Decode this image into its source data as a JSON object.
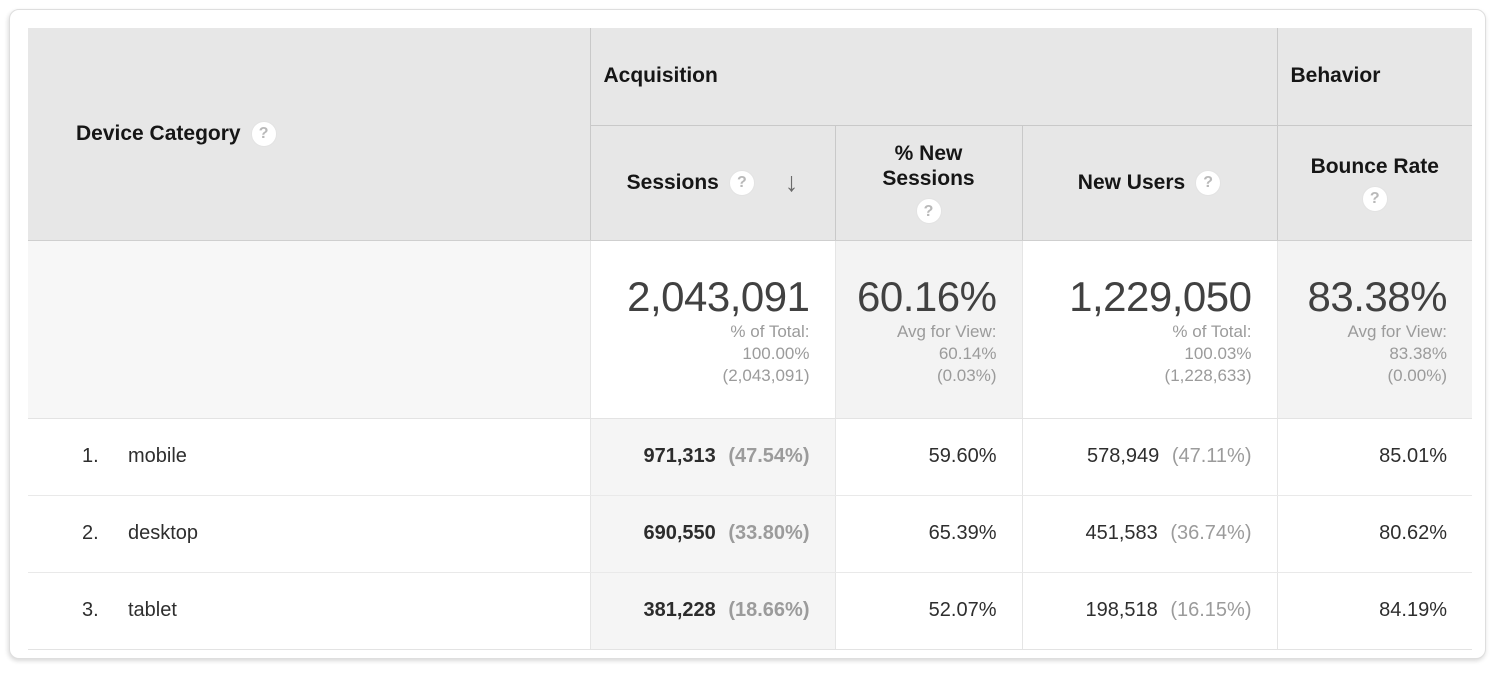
{
  "glyphs": {
    "help": "?",
    "sort_desc": "↓"
  },
  "colors": {
    "header_bg": "#e7e7e7",
    "sorted_column_bg": "#f5f5f5",
    "summary_alt_bg": "#f3f3f3",
    "muted_text": "#9b9b9b"
  },
  "table": {
    "dimension_header": "Device Category",
    "group_headers": {
      "acquisition": "Acquisition",
      "behavior": "Behavior"
    },
    "metric_headers": {
      "sessions": "Sessions",
      "new_sessions_line1": "% New",
      "new_sessions_line2": "Sessions",
      "new_users": "New Users",
      "bounce_rate": "Bounce Rate"
    },
    "summary": {
      "sessions": {
        "value": "2,043,091",
        "sub1": "% of Total:",
        "sub2": "100.00%",
        "sub3": "(2,043,091)"
      },
      "new_sessions": {
        "value": "60.16%",
        "sub1": "Avg for View:",
        "sub2": "60.14%",
        "sub3": "(0.03%)"
      },
      "new_users": {
        "value": "1,229,050",
        "sub1": "% of Total:",
        "sub2": "100.03%",
        "sub3": "(1,228,633)"
      },
      "bounce_rate": {
        "value": "83.38%",
        "sub1": "Avg for View:",
        "sub2": "83.38%",
        "sub3": "(0.00%)"
      }
    },
    "rows": [
      {
        "index": "1.",
        "device": "mobile",
        "sessions": "971,313",
        "sessions_share": "(47.54%)",
        "pct_new_sessions": "59.60%",
        "new_users": "578,949",
        "new_users_share": "(47.11%)",
        "bounce_rate": "85.01%"
      },
      {
        "index": "2.",
        "device": "desktop",
        "sessions": "690,550",
        "sessions_share": "(33.80%)",
        "pct_new_sessions": "65.39%",
        "new_users": "451,583",
        "new_users_share": "(36.74%)",
        "bounce_rate": "80.62%"
      },
      {
        "index": "3.",
        "device": "tablet",
        "sessions": "381,228",
        "sessions_share": "(18.66%)",
        "pct_new_sessions": "52.07%",
        "new_users": "198,518",
        "new_users_share": "(16.15%)",
        "bounce_rate": "84.19%"
      }
    ]
  }
}
